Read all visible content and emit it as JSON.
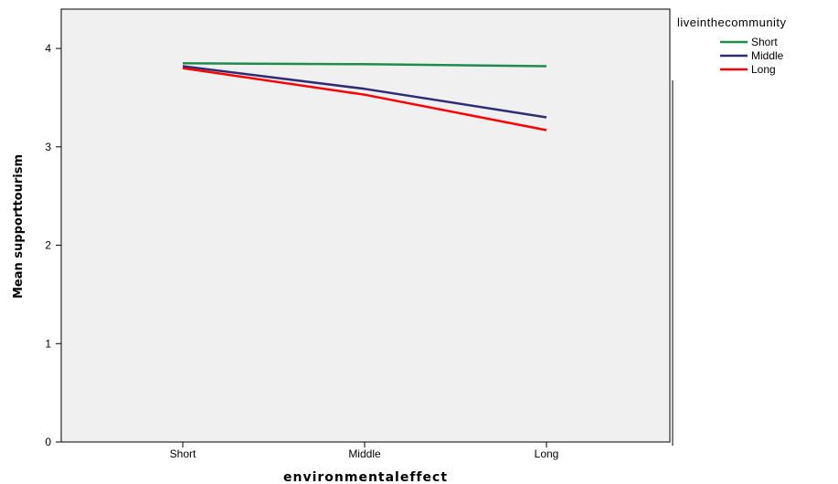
{
  "chart_data": {
    "type": "line",
    "title": "",
    "xlabel": "environmentaleffect",
    "ylabel": "Mean supporttourism",
    "categories": [
      "Short",
      "Middle",
      "Long"
    ],
    "ylim": [
      0,
      4.4
    ],
    "yticks": [
      "0",
      "1",
      "2",
      "3",
      "4"
    ],
    "grid": false,
    "legend": {
      "title": "liveinthecommunity",
      "placement": "top-right outside"
    },
    "series": [
      {
        "name": "Short",
        "color": "#1e8c4c",
        "values": [
          3.85,
          3.84,
          3.82
        ]
      },
      {
        "name": "Middle",
        "color": "#2e2c74",
        "values": [
          3.82,
          3.59,
          3.3
        ]
      },
      {
        "name": "Long",
        "color": "#ff0000",
        "values": [
          3.8,
          3.53,
          3.17
        ]
      }
    ],
    "plot_background": "#f0f0f0"
  }
}
